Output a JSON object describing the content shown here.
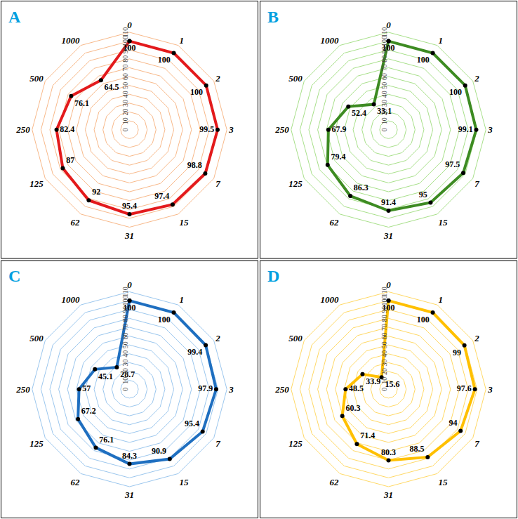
{
  "chart_data": [
    {
      "type": "radar",
      "title": "A",
      "categories": [
        "0",
        "1",
        "2",
        "3",
        "7",
        "15",
        "31",
        "62",
        "125",
        "250",
        "500",
        "1000"
      ],
      "values": [
        100,
        100,
        100,
        99.5,
        98.8,
        97.4,
        95.4,
        92,
        87,
        82.4,
        76.1,
        64.5
      ],
      "color": "#e31a1c",
      "ylim": [
        0,
        110
      ],
      "yticks": [
        0,
        10,
        20,
        30,
        40,
        50,
        60,
        70,
        80,
        90,
        100,
        110
      ],
      "grid": true,
      "data_labels": true,
      "marker": "circle"
    },
    {
      "type": "radar",
      "title": "B",
      "categories": [
        "0",
        "1",
        "2",
        "3",
        "7",
        "15",
        "31",
        "62",
        "125",
        "250",
        "500",
        "1000"
      ],
      "values": [
        100,
        100,
        100,
        99.1,
        97.5,
        95,
        91.4,
        86.3,
        79.4,
        67.9,
        52.4,
        33.1
      ],
      "color": "#3d8b22",
      "ylim": [
        0,
        110
      ],
      "yticks": [
        0,
        10,
        20,
        30,
        40,
        50,
        60,
        70,
        80,
        90,
        100,
        110
      ],
      "grid": true,
      "data_labels": true,
      "marker": "circle"
    },
    {
      "type": "radar",
      "title": "C",
      "categories": [
        "0",
        "1",
        "2",
        "3",
        "7",
        "15",
        "31",
        "62",
        "125",
        "250",
        "500",
        "1000"
      ],
      "values": [
        100,
        100,
        99.4,
        97.9,
        95.4,
        90.9,
        84.3,
        76.1,
        67.2,
        57,
        45.1,
        28.7
      ],
      "color": "#1f6fc0",
      "ylim": [
        0,
        110
      ],
      "yticks": [
        0,
        10,
        20,
        30,
        40,
        50,
        60,
        70,
        80,
        90,
        100,
        110
      ],
      "grid": true,
      "data_labels": true,
      "marker": "circle"
    },
    {
      "type": "radar",
      "title": "D",
      "categories": [
        "0",
        "1",
        "2",
        "3",
        "7",
        "15",
        "31",
        "62",
        "125",
        "250",
        "500",
        "1000"
      ],
      "values": [
        100,
        100,
        99,
        97.6,
        94,
        88.5,
        80.3,
        71.4,
        60.3,
        48.5,
        33.9,
        15.6
      ],
      "color": "#ffc000",
      "ylim": [
        0,
        110
      ],
      "yticks": [
        0,
        10,
        20,
        30,
        40,
        50,
        60,
        70,
        80,
        90,
        100,
        110
      ],
      "grid": true,
      "data_labels": true,
      "marker": "circle"
    }
  ]
}
